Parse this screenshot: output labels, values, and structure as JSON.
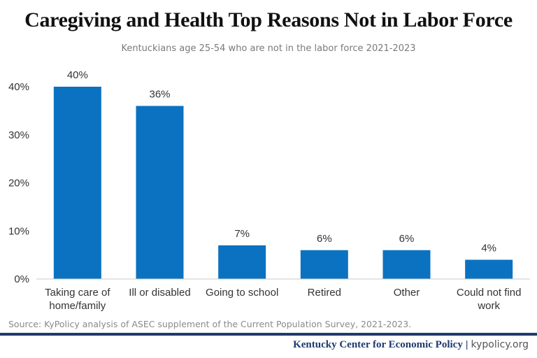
{
  "title": "Caregiving and Health Top Reasons Not in Labor Force",
  "subtitle": "Kentuckians age 25-54 who are not in the labor force 2021-2023",
  "source": "Source: KyPolicy analysis of ASEC supplement of the Current Population Survey, 2021-2023.",
  "footer": {
    "org": "Kentucky Center for Economic Policy",
    "separator": "|",
    "site": "kypolicy.org"
  },
  "colors": {
    "bar": "#0b72c1",
    "footer": "#1f3a6e"
  },
  "chart_data": {
    "type": "bar",
    "categories": [
      [
        "Taking care of",
        "home/family"
      ],
      [
        "Ill or disabled"
      ],
      [
        "Going to school"
      ],
      [
        "Retired"
      ],
      [
        "Other"
      ],
      [
        "Could not find",
        "work"
      ]
    ],
    "values": [
      40,
      36,
      7,
      6,
      6,
      4
    ],
    "data_labels": [
      "40%",
      "36%",
      "7%",
      "6%",
      "6%",
      "4%"
    ],
    "yticks": [
      0,
      10,
      20,
      30,
      40
    ],
    "ytick_labels": [
      "0%",
      "10%",
      "20%",
      "30%",
      "40%"
    ],
    "ylim": [
      0,
      40
    ],
    "grid": false,
    "xlabel": "",
    "ylabel": ""
  }
}
